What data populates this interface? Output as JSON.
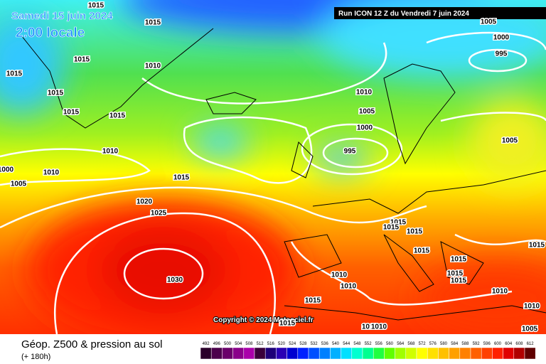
{
  "header": {
    "date": "Samedi 15 juin 2024",
    "time": "2:00 locale",
    "run": "Run ICON 12 Z du Vendredi 7 juin 2024"
  },
  "footer": {
    "title": "Géop. Z500 & pression au sol",
    "lead": "(+ 180h)",
    "copyright": "Copyright © 2024 Meteociel.fr"
  },
  "legend": {
    "levels": [
      "492",
      "496",
      "500",
      "504",
      "508",
      "512",
      "516",
      "520",
      "524",
      "528",
      "532",
      "536",
      "540",
      "544",
      "548",
      "552",
      "556",
      "560",
      "564",
      "568",
      "572",
      "576",
      "580",
      "584",
      "588",
      "592",
      "596",
      "600",
      "604",
      "608",
      "612"
    ]
  },
  "isobar_labels": [
    "1015",
    "1015",
    "1015",
    "1015",
    "1015",
    "1015",
    "1015",
    "1015",
    "1015",
    "1015",
    "1015",
    "1015",
    "1015",
    "1015",
    "1015",
    "1015",
    "1015",
    "1015",
    "1015",
    "1010",
    "1010",
    "1010",
    "1010",
    "1010",
    "1010",
    "1010",
    "1010",
    "1010",
    "1005",
    "1005",
    "1005",
    "1005",
    "1005",
    "1000",
    "1000",
    "1000",
    "995",
    "995",
    "1020",
    "1025",
    "1030"
  ]
}
